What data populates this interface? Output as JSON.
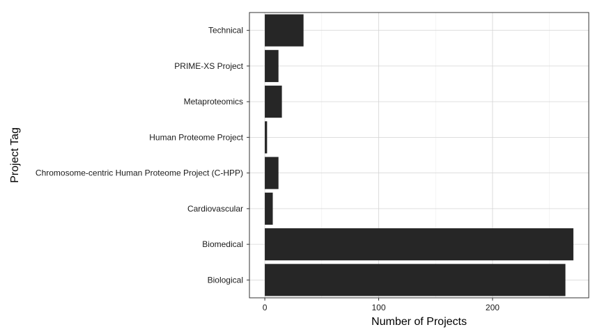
{
  "chart_data": {
    "type": "bar",
    "orientation": "horizontal",
    "categories": [
      "Technical",
      "PRIME-XS Project",
      "Metaproteomics",
      "Human Proteome Project",
      "Chromosome-centric Human Proteome Project (C-HPP)",
      "Cardiovascular",
      "Biomedical",
      "Biological"
    ],
    "values": [
      34,
      12,
      15,
      2,
      12,
      7,
      271,
      264
    ],
    "xlabel": "Number of Projects",
    "ylabel": "Project Tag",
    "xticks": [
      0,
      100,
      200
    ],
    "xlim": [
      -13.5,
      284.5
    ],
    "grid": true,
    "legend": "none",
    "colors": {
      "bar": "#262626",
      "grid_major": "#d4d4d4",
      "grid_minor": "#ececec",
      "panel_border": "#333333"
    }
  }
}
